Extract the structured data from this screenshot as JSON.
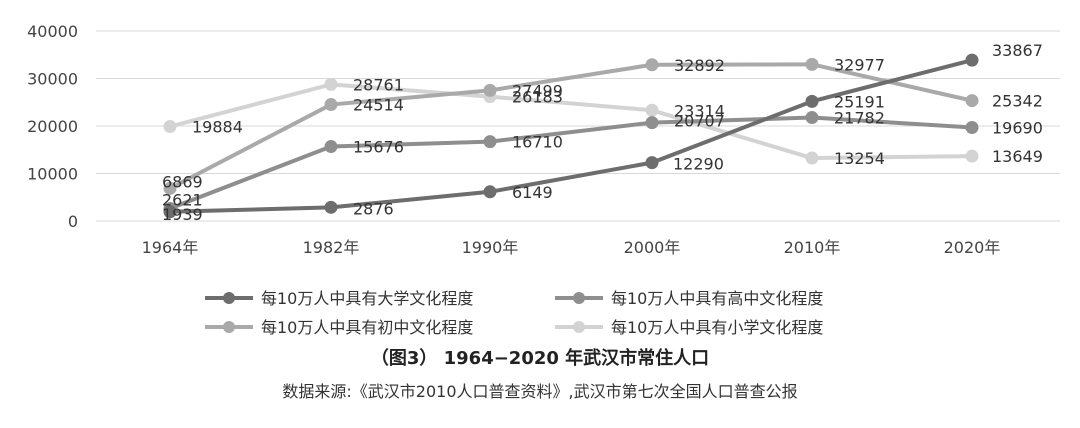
{
  "chart_data": {
    "type": "line",
    "categories": [
      "1964年",
      "1982年",
      "1990年",
      "2000年",
      "2010年",
      "2020年"
    ],
    "y_ticks": [
      "0",
      "10000",
      "20000",
      "30000",
      "40000"
    ],
    "ylim": [
      0,
      40000
    ],
    "grid": true,
    "legend_position": "bottom",
    "series": [
      {
        "name": "每10万人中具有大学文化程度",
        "color": "#6d6d6d",
        "values": [
          1939,
          2876,
          6149,
          12290,
          25191,
          33867
        ],
        "labels": [
          "1939",
          "2876",
          "6149",
          "12290",
          "25191",
          "33867"
        ]
      },
      {
        "name": "每10万人中具有高中文化程度",
        "color": "#8e8e8e",
        "values": [
          2621,
          15676,
          16710,
          20707,
          21782,
          19690
        ],
        "labels": [
          "2621",
          "15676",
          "16710",
          "20707",
          "21782",
          "19690"
        ]
      },
      {
        "name": "每10万人中具有初中文化程度",
        "color": "#a9a9a9",
        "values": [
          6869,
          24514,
          27499,
          32892,
          32977,
          25342
        ],
        "labels": [
          "6869",
          "24514",
          "27499",
          "32892",
          "32977",
          "25342"
        ]
      },
      {
        "name": "每10万人中具有小学文化程度",
        "color": "#d3d3d3",
        "values": [
          19884,
          28761,
          26183,
          23314,
          13254,
          13649
        ],
        "labels": [
          "19884",
          "28761",
          "26183",
          "23314",
          "13254",
          "13649"
        ]
      }
    ]
  },
  "caption": {
    "title": "（图3） 1964−2020 年武汉市常住人口",
    "source": "数据来源:《武汉市2010人口普查资料》,武汉市第七次全国人口普查公报"
  }
}
